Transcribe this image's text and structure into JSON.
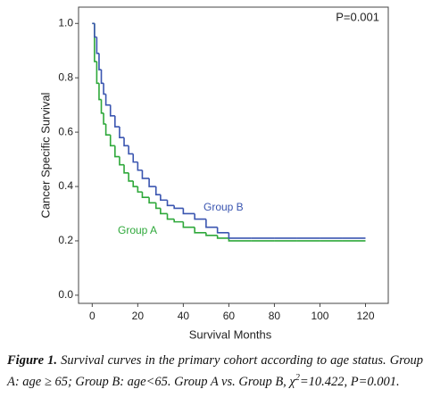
{
  "chart_data": {
    "type": "step",
    "xlabel": "Survival Months",
    "ylabel": "Cancer Specific Survival",
    "annotation": "P=0.001",
    "xlim": [
      -6,
      130
    ],
    "ylim": [
      -0.03,
      1.06
    ],
    "xticks": [
      0,
      20,
      40,
      60,
      80,
      100,
      120
    ],
    "yticks": [
      {
        "value": 0,
        "label": "0.0"
      },
      {
        "value": 0.2,
        "label": "0.2"
      },
      {
        "value": 0.4,
        "label": "0.4"
      },
      {
        "value": 0.6,
        "label": "0.6"
      },
      {
        "value": 0.8,
        "label": "0.8"
      },
      {
        "value": 1,
        "label": "1.0"
      }
    ],
    "series": [
      {
        "name": "Group A",
        "color": "#2ea83a",
        "x": [
          0,
          1,
          2,
          3,
          4,
          5,
          6,
          8,
          10,
          12,
          14,
          16,
          18,
          20,
          22,
          25,
          28,
          30,
          33,
          36,
          40,
          45,
          50,
          55,
          60,
          70,
          80,
          90,
          100,
          110,
          120
        ],
        "values": [
          1.0,
          0.86,
          0.78,
          0.72,
          0.67,
          0.63,
          0.59,
          0.55,
          0.51,
          0.48,
          0.45,
          0.42,
          0.4,
          0.38,
          0.36,
          0.34,
          0.32,
          0.3,
          0.28,
          0.27,
          0.25,
          0.23,
          0.22,
          0.21,
          0.2,
          0.2,
          0.2,
          0.2,
          0.2,
          0.2,
          0.2
        ]
      },
      {
        "name": "Group B",
        "color": "#3a55b0",
        "x": [
          0,
          1,
          2,
          3,
          4,
          5,
          6,
          8,
          10,
          12,
          14,
          16,
          18,
          20,
          22,
          25,
          28,
          30,
          33,
          36,
          40,
          45,
          50,
          55,
          60,
          70,
          80,
          90,
          100,
          110,
          120
        ],
        "values": [
          1.0,
          0.95,
          0.89,
          0.83,
          0.78,
          0.74,
          0.7,
          0.66,
          0.62,
          0.58,
          0.55,
          0.52,
          0.49,
          0.46,
          0.43,
          0.4,
          0.37,
          0.35,
          0.33,
          0.32,
          0.3,
          0.28,
          0.25,
          0.23,
          0.21,
          0.21,
          0.21,
          0.21,
          0.21,
          0.21,
          0.21
        ]
      }
    ]
  },
  "caption": {
    "label": "Figure 1.",
    "text": "Survival curves in the primary cohort according to age status. Group A: age ≥ 65; Group B: age<65. Group A vs. Group B, χ",
    "sup": "2",
    "tail": "=10.422, P=0.001."
  }
}
